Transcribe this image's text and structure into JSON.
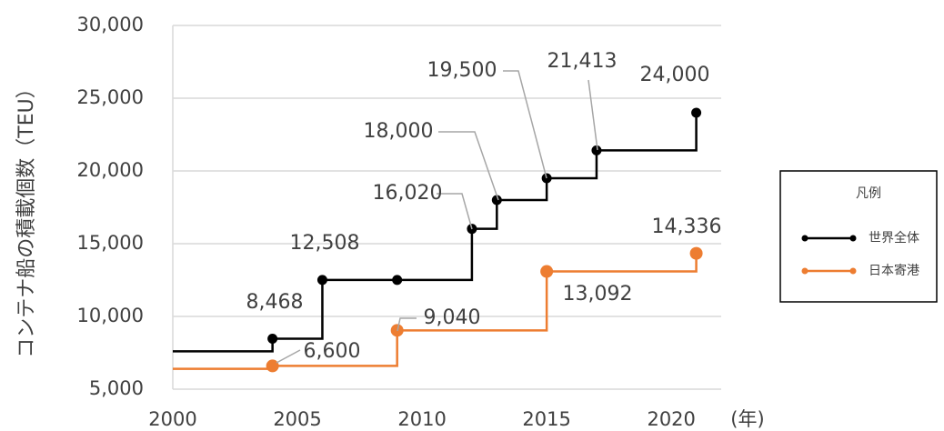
{
  "chart_data": {
    "type": "step",
    "y_label": "コンテナ船の積載個数（TEU）",
    "x_unit": "(年)",
    "xlim": [
      2000,
      2022
    ],
    "xticks": [
      2000,
      2005,
      2010,
      2015,
      2020
    ],
    "ylim": [
      5000,
      30000
    ],
    "yticks": [
      {
        "value": 5000,
        "label": "5,000"
      },
      {
        "value": 10000,
        "label": "10,000"
      },
      {
        "value": 15000,
        "label": "15,000"
      },
      {
        "value": 20000,
        "label": "20,000"
      },
      {
        "value": 25000,
        "label": "25,000"
      },
      {
        "value": 30000,
        "label": "30,000"
      }
    ],
    "grid": true,
    "legend": {
      "title": "凡例",
      "position": "right"
    },
    "series": [
      {
        "name": "世界全体",
        "color": "#000000",
        "x": [
          2000,
          2004,
          2006,
          2009,
          2012,
          2013,
          2015,
          2017,
          2021
        ],
        "values": [
          7600,
          8468,
          12508,
          12508,
          16020,
          18000,
          19500,
          21413,
          24000
        ],
        "value_labels": [
          null,
          "8,468",
          "12,508",
          null,
          "16,020",
          "18,000",
          "19,500",
          "21,413",
          "24,000"
        ]
      },
      {
        "name": "日本寄港",
        "color": "#ED7D31",
        "x": [
          2000,
          2004,
          2009,
          2015,
          2021
        ],
        "values": [
          6400,
          6600,
          9040,
          13092,
          14336
        ],
        "value_labels": [
          null,
          "6,600",
          "9,040",
          "13,092",
          "14,336"
        ]
      }
    ]
  }
}
